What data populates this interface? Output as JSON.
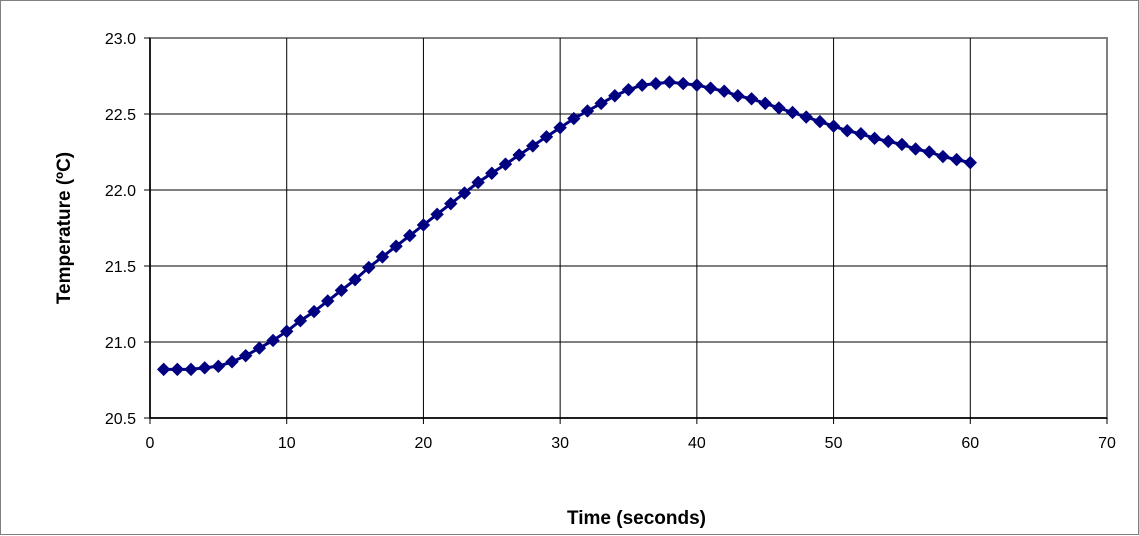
{
  "chart_data": {
    "type": "scatter",
    "title": "",
    "xlabel": "Time (seconds)",
    "ylabel": "Temperature (ºC)",
    "xlim": [
      0,
      70
    ],
    "ylim": [
      20.5,
      23.0
    ],
    "x_ticks": [
      0,
      10,
      20,
      30,
      40,
      50,
      60,
      70
    ],
    "y_ticks": [
      "20.5",
      "21.0",
      "21.5",
      "22.0",
      "22.5",
      "23.0"
    ],
    "grid": true,
    "marker": "diamond",
    "line": true,
    "series_color": "#000080",
    "series": [
      {
        "x": [
          1,
          2,
          3,
          4,
          5,
          6,
          7,
          8,
          9,
          10,
          11,
          12,
          13,
          14,
          15,
          16,
          17,
          18,
          19,
          20,
          21,
          22,
          23,
          24,
          25,
          26,
          27,
          28,
          29,
          30,
          31,
          32,
          33,
          34,
          35,
          36,
          37,
          38,
          39,
          40,
          41,
          42,
          43,
          44,
          45,
          46,
          47,
          48,
          49,
          50,
          51,
          52,
          53,
          54,
          55,
          56,
          57,
          58,
          59,
          60
        ],
        "values": [
          20.82,
          20.82,
          20.82,
          20.83,
          20.84,
          20.87,
          20.91,
          20.96,
          21.01,
          21.07,
          21.14,
          21.2,
          21.27,
          21.34,
          21.41,
          21.49,
          21.56,
          21.63,
          21.7,
          21.77,
          21.84,
          21.91,
          21.98,
          22.05,
          22.11,
          22.17,
          22.23,
          22.29,
          22.35,
          22.41,
          22.47,
          22.52,
          22.57,
          22.62,
          22.66,
          22.69,
          22.7,
          22.71,
          22.7,
          22.69,
          22.67,
          22.65,
          22.62,
          22.6,
          22.57,
          22.54,
          22.51,
          22.48,
          22.45,
          22.42,
          22.39,
          22.37,
          22.34,
          22.32,
          22.3,
          22.27,
          22.25,
          22.22,
          22.2,
          22.18
        ]
      }
    ]
  }
}
